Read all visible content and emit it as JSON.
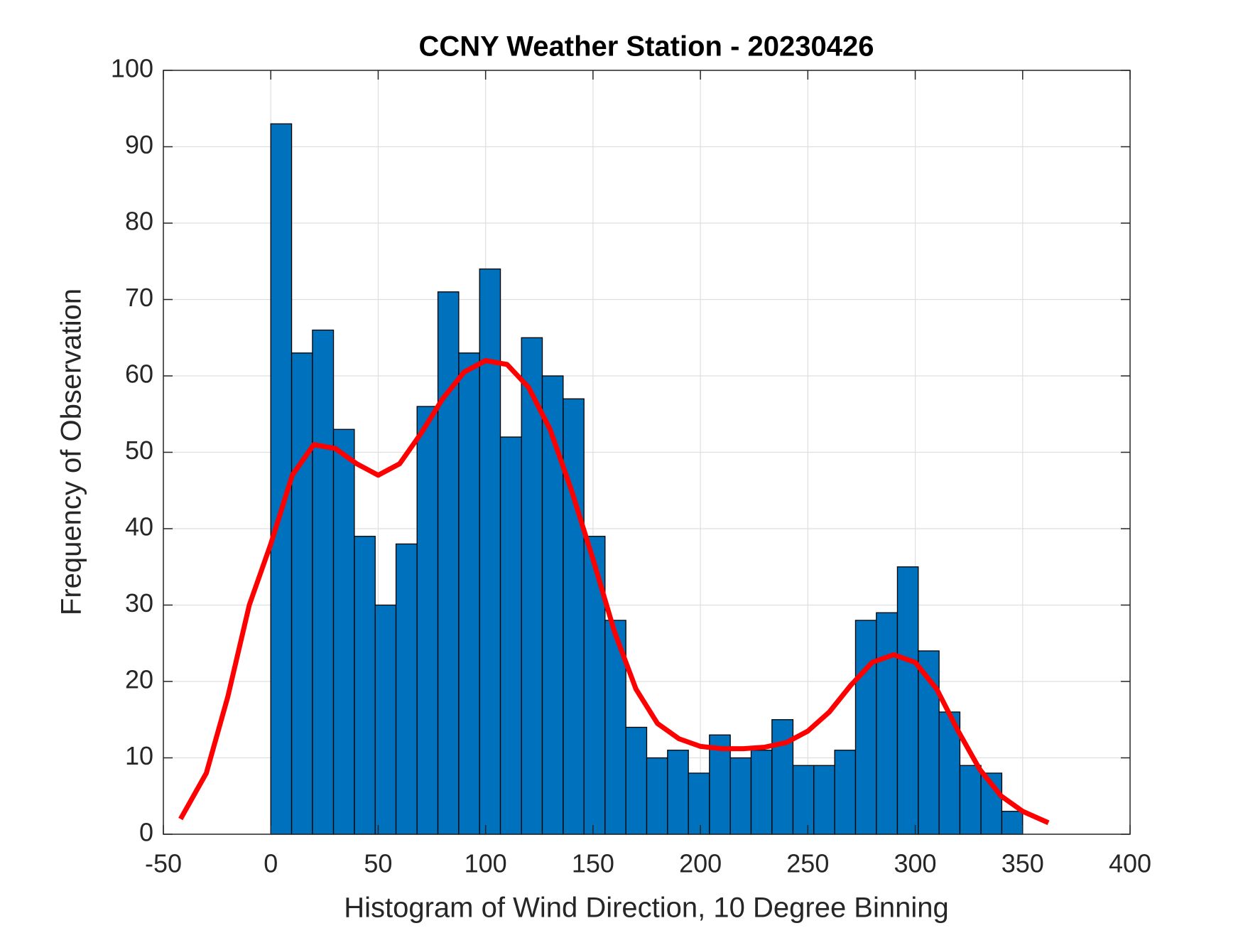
{
  "chart_data": {
    "type": "histogram",
    "title": "CCNY Weather Station - 20230426",
    "x_label": "Histogram of Wind Direction, 10 Degree Binning",
    "y_label": "Frequency of Observation",
    "bins": [
      0,
      9.7,
      19.4,
      29.2,
      38.9,
      48.6,
      58.3,
      68.1,
      77.8,
      87.5,
      97.2,
      106.9,
      116.7,
      126.4,
      136.1,
      145.8,
      155.6,
      165.3,
      175,
      184.7,
      194.4,
      204.2,
      213.9,
      223.6,
      233.3,
      243.1,
      252.8,
      262.5,
      272.2,
      281.9,
      291.7,
      301.4,
      311.1,
      320.8,
      330.6,
      340.3,
      350
    ],
    "values": [
      93,
      63,
      66,
      53,
      39,
      30,
      38,
      56,
      71,
      63,
      74,
      52,
      65,
      60,
      57,
      39,
      28,
      14,
      10,
      11,
      8,
      13,
      10,
      11,
      15,
      9,
      9,
      11,
      28,
      29,
      35,
      24,
      16,
      9,
      8,
      3
    ],
    "color": "#0072bd",
    "fit": {
      "color": "#ff0000",
      "x": [
        -42,
        -30,
        -20,
        -10,
        0,
        10,
        20,
        30,
        40,
        50,
        60,
        70,
        80,
        90,
        100,
        110,
        120,
        130,
        140,
        150,
        160,
        170,
        180,
        190,
        200,
        210,
        220,
        230,
        240,
        250,
        260,
        270,
        280,
        290,
        300,
        310,
        320,
        330,
        340,
        350,
        362
      ],
      "y": [
        2,
        8,
        18,
        30,
        38,
        47,
        51,
        50.5,
        48.5,
        47,
        48.5,
        52.5,
        57,
        60.5,
        62,
        61.5,
        58.5,
        53,
        45,
        36,
        26.5,
        19,
        14.5,
        12.5,
        11.5,
        11.2,
        11.2,
        11.4,
        12,
        13.5,
        16,
        19.5,
        22.5,
        23.5,
        22.5,
        19,
        13.5,
        8.5,
        5,
        3,
        1.5
      ]
    },
    "xlim": [
      -50,
      400
    ],
    "xticks": [
      -50,
      0,
      50,
      100,
      150,
      200,
      250,
      300,
      350,
      400
    ],
    "ylim": [
      0,
      100
    ],
    "yticks": [
      0,
      10,
      20,
      30,
      40,
      50,
      60,
      70,
      80,
      90,
      100
    ],
    "grid": true
  }
}
